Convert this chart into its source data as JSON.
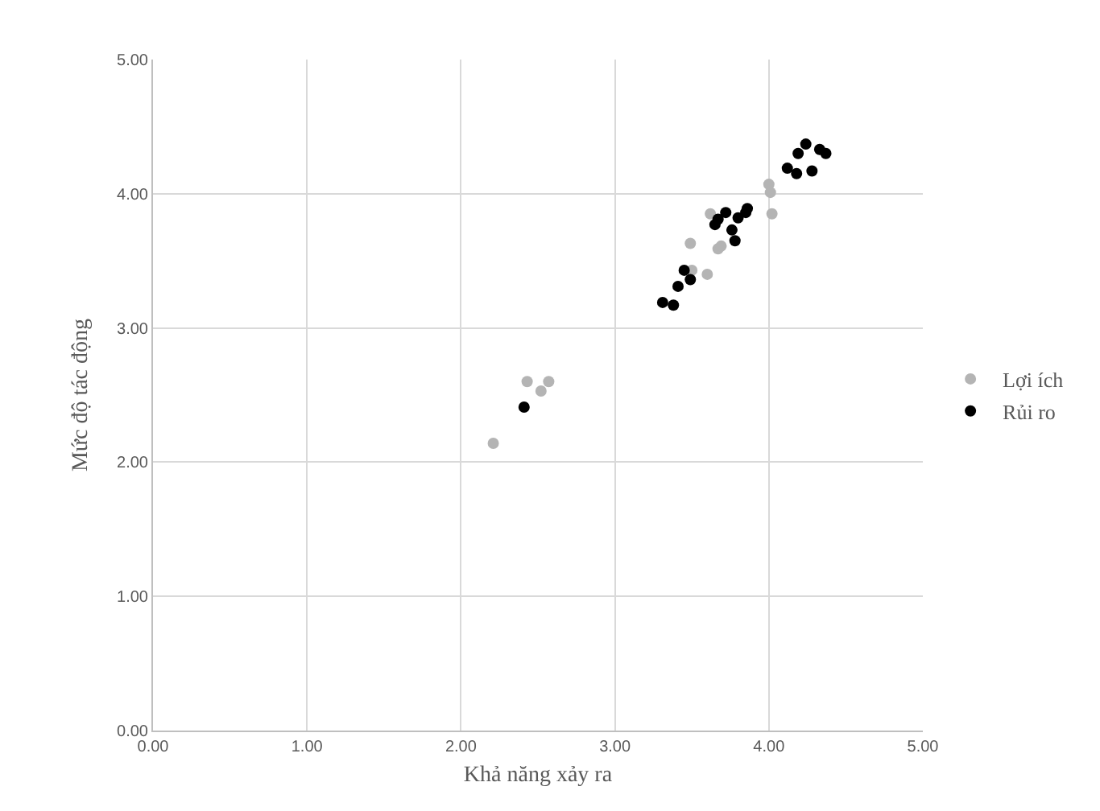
{
  "chart_data": {
    "type": "scatter",
    "xlabel": "Khả năng xảy ra",
    "ylabel": "Mức độ tác động",
    "xlim": [
      0,
      5
    ],
    "ylim": [
      0,
      5
    ],
    "xticks": [
      {
        "value": 0,
        "label": "0.00"
      },
      {
        "value": 1,
        "label": "1.00"
      },
      {
        "value": 2,
        "label": "2.00"
      },
      {
        "value": 3,
        "label": "3.00"
      },
      {
        "value": 4,
        "label": "4.00"
      },
      {
        "value": 5,
        "label": "5.00"
      }
    ],
    "yticks": [
      {
        "value": 0,
        "label": "0.00"
      },
      {
        "value": 1,
        "label": "1.00"
      },
      {
        "value": 2,
        "label": "2.00"
      },
      {
        "value": 3,
        "label": "3.00"
      },
      {
        "value": 4,
        "label": "4.00"
      },
      {
        "value": 5,
        "label": "5.00"
      }
    ],
    "grid": true,
    "legend": "right",
    "marker": "circle",
    "series": [
      {
        "name": "Lợi ích",
        "color": "#b4b4b4",
        "x": [
          4.0,
          4.01,
          4.02,
          3.62,
          3.49,
          3.67,
          3.69,
          3.6,
          3.5,
          2.43,
          2.57,
          2.52,
          2.21
        ],
        "values": [
          4.07,
          4.01,
          3.85,
          3.85,
          3.63,
          3.59,
          3.61,
          3.4,
          3.43,
          2.6,
          2.6,
          2.53,
          2.14
        ]
      },
      {
        "name": "Rủi ro",
        "color": "#000000",
        "x": [
          4.24,
          4.19,
          4.33,
          4.37,
          4.12,
          4.18,
          4.28,
          3.86,
          3.85,
          3.72,
          3.8,
          3.67,
          3.65,
          3.76,
          3.78,
          3.45,
          3.49,
          3.41,
          3.31,
          3.38,
          2.41
        ],
        "values": [
          4.37,
          4.3,
          4.33,
          4.3,
          4.19,
          4.15,
          4.17,
          3.89,
          3.86,
          3.86,
          3.82,
          3.81,
          3.77,
          3.73,
          3.65,
          3.43,
          3.36,
          3.31,
          3.19,
          3.17,
          2.41
        ]
      }
    ]
  }
}
